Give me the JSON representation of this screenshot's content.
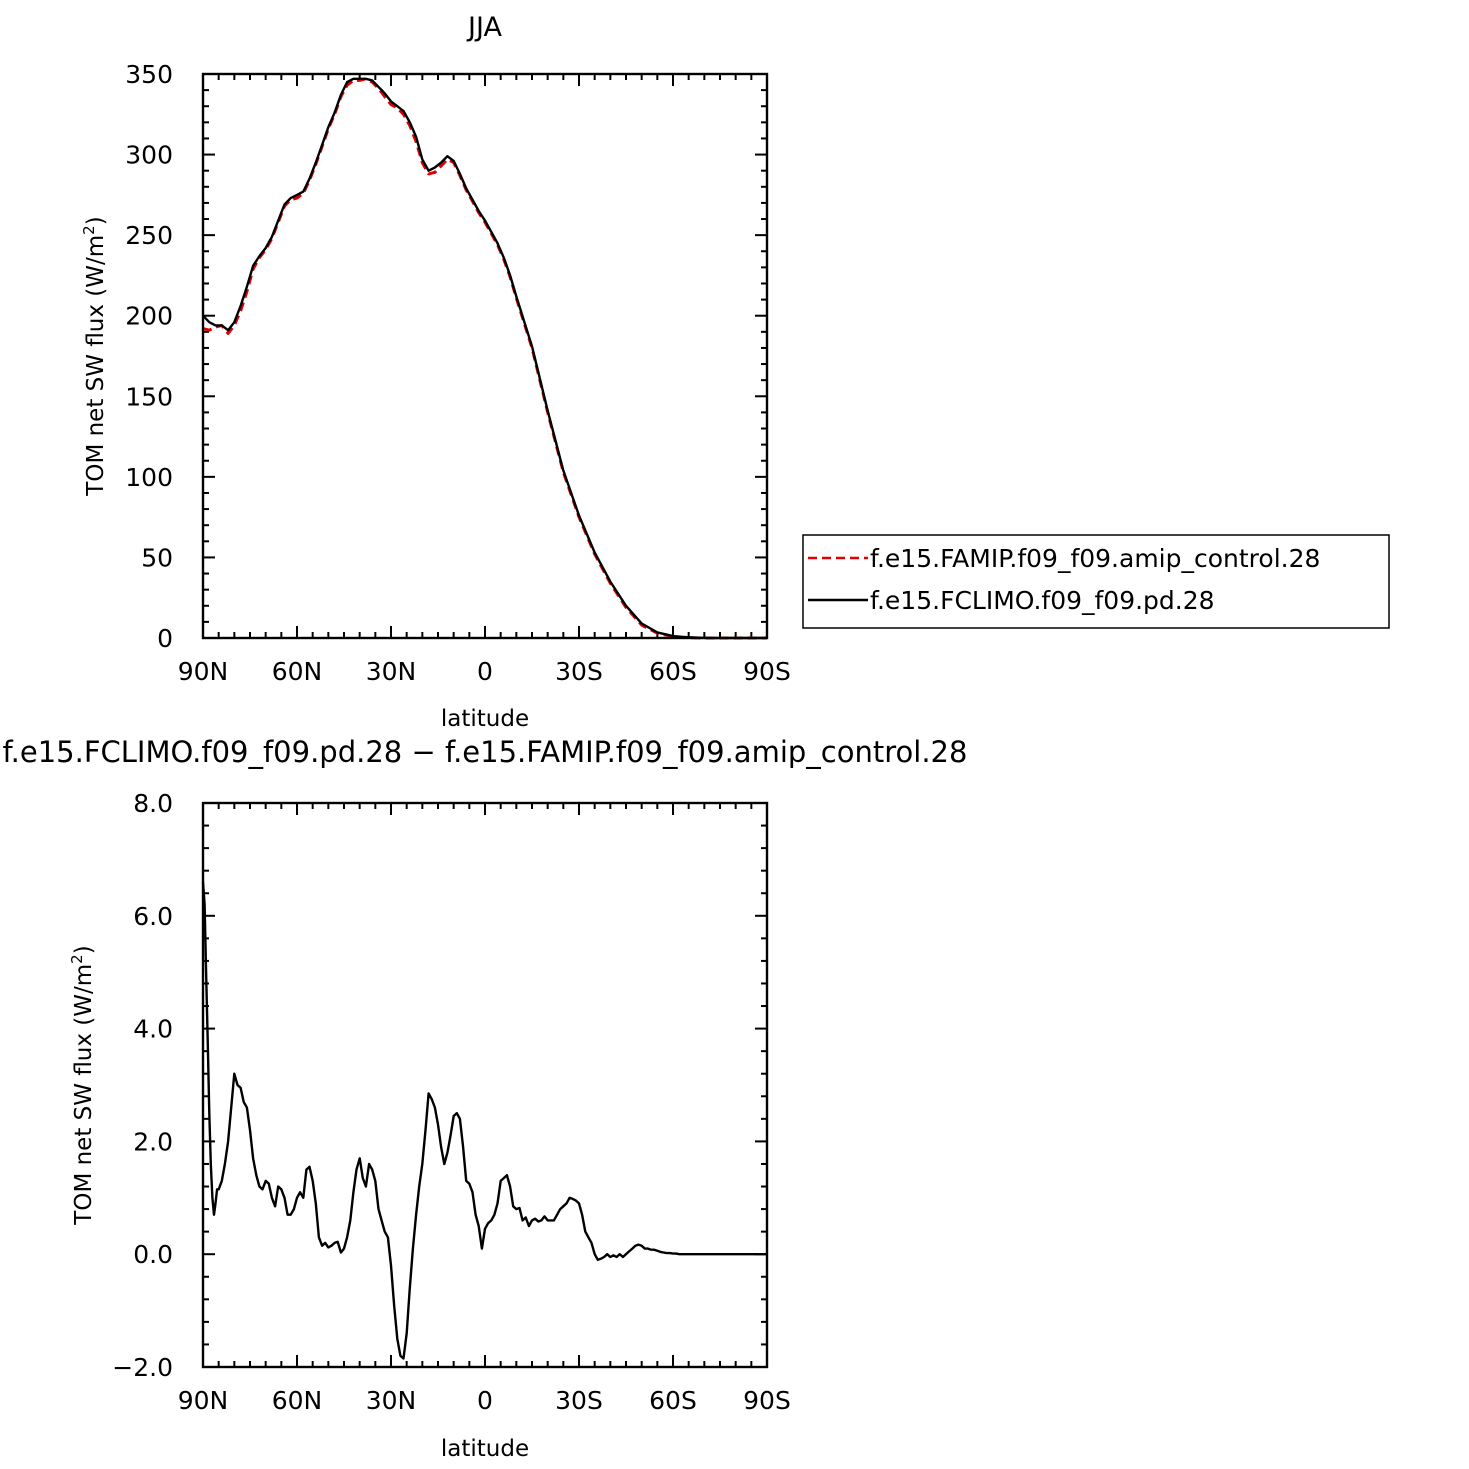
{
  "chart_data": [
    {
      "type": "line",
      "title": "JJA",
      "xlabel": "latitude",
      "ylabel": "TOM net SW flux (W/m",
      "ylabel_sup": "2",
      "ylabel_close": ")",
      "xlim": [
        90,
        -90
      ],
      "ylim": [
        0,
        350
      ],
      "xticks": [
        90,
        60,
        30,
        0,
        -30,
        -60,
        -90
      ],
      "xtick_labels": [
        "90N",
        "60N",
        "30N",
        "0",
        "30S",
        "60S",
        "90S"
      ],
      "yticks": [
        0,
        50,
        100,
        150,
        200,
        250,
        300,
        350
      ],
      "ytick_labels": [
        "0",
        "50",
        "100",
        "150",
        "200",
        "250",
        "300",
        "350"
      ],
      "legend": "right",
      "series": [
        {
          "name": "f.e15.FAMIP.f09_f09.amip_control.28",
          "color": "#e00000",
          "dash": "dashed",
          "x": [
            90,
            88,
            86,
            84,
            82,
            80,
            78,
            76,
            74,
            72,
            70,
            68,
            66,
            64,
            62,
            60,
            58,
            56,
            54,
            52,
            50,
            48,
            46,
            44,
            42,
            40,
            38,
            36,
            34,
            32,
            30,
            28,
            26,
            24,
            22,
            20,
            18,
            16,
            14,
            12,
            10,
            8,
            6,
            4,
            2,
            0,
            -2,
            -4,
            -6,
            -8,
            -10,
            -15,
            -20,
            -25,
            -30,
            -35,
            -40,
            -45,
            -50,
            -55,
            -60,
            -63,
            -66,
            -69,
            -72,
            -75,
            -80,
            -85,
            -90
          ],
          "y": [
            192,
            191,
            193,
            194,
            189,
            194,
            203,
            215,
            229,
            236,
            241,
            248,
            258,
            268,
            272,
            273,
            276,
            284,
            294,
            305,
            316,
            325,
            336,
            343,
            346,
            346,
            347,
            345,
            341,
            336,
            331,
            329,
            325,
            318,
            308,
            295,
            288,
            289,
            293,
            297,
            295,
            287,
            278,
            271,
            264,
            258,
            251,
            244,
            235,
            224,
            211,
            180,
            140,
            103,
            75,
            52,
            34,
            19,
            8,
            3,
            1,
            0.5,
            0.2,
            0,
            0,
            0,
            0,
            0,
            0
          ]
        },
        {
          "name": "f.e15.FCLIMO.f09_f09.pd.28",
          "color": "#000000",
          "dash": "solid",
          "x": [
            90,
            88,
            86,
            84,
            82,
            80,
            78,
            76,
            74,
            72,
            70,
            68,
            66,
            64,
            62,
            60,
            58,
            56,
            54,
            52,
            50,
            48,
            46,
            44,
            42,
            40,
            38,
            36,
            34,
            32,
            30,
            28,
            26,
            24,
            22,
            20,
            18,
            16,
            14,
            12,
            10,
            8,
            6,
            4,
            2,
            0,
            -2,
            -4,
            -6,
            -8,
            -10,
            -15,
            -20,
            -25,
            -30,
            -35,
            -40,
            -45,
            -50,
            -55,
            -60,
            -63,
            -66,
            -69,
            -72,
            -75,
            -80,
            -85,
            -90
          ],
          "y": [
            200,
            196,
            194,
            194,
            191,
            196,
            206,
            218,
            231,
            237,
            242,
            249,
            259,
            269,
            273,
            275,
            277,
            285,
            295,
            306,
            317,
            326,
            337,
            345,
            347,
            347,
            347,
            346,
            342,
            338,
            333,
            330,
            327,
            320,
            311,
            297,
            290,
            292,
            295,
            299,
            296,
            288,
            279,
            272,
            265,
            259,
            252,
            245,
            236,
            225,
            212,
            181,
            141,
            104,
            76,
            53,
            35,
            20,
            9,
            3.5,
            1.2,
            0.6,
            0.3,
            0.1,
            0,
            0,
            0,
            0,
            0
          ]
        }
      ]
    },
    {
      "type": "line",
      "title": "f.e15.FCLIMO.f09_f09.pd.28 − f.e15.FAMIP.f09_f09.amip_control.28",
      "xlabel": "latitude",
      "ylabel": "TOM net SW flux (W/m",
      "ylabel_sup": "2",
      "ylabel_close": ")",
      "xlim": [
        90,
        -90
      ],
      "ylim": [
        -2,
        8
      ],
      "xticks": [
        90,
        60,
        30,
        0,
        -30,
        -60,
        -90
      ],
      "xtick_labels": [
        "90N",
        "60N",
        "30N",
        "0",
        "30S",
        "60S",
        "90S"
      ],
      "yticks": [
        -2,
        0,
        2,
        4,
        6,
        8
      ],
      "ytick_labels": [
        "−2.0",
        "0.0",
        "2.0",
        "4.0",
        "6.0",
        "8.0"
      ],
      "series": [
        {
          "color": "#000000",
          "dash": "solid",
          "x": [
            90,
            89.5,
            89,
            88.5,
            88,
            87.5,
            87,
            86.5,
            86,
            85.5,
            85,
            84,
            83,
            82,
            81,
            80,
            79,
            78,
            77,
            76,
            75,
            74,
            73,
            72,
            71,
            70,
            69,
            68,
            67,
            66,
            65,
            64,
            63,
            62,
            61,
            60,
            59,
            58,
            57,
            56,
            55,
            54,
            53,
            52,
            51,
            50,
            49,
            48,
            47,
            46,
            45,
            44,
            43,
            42,
            41,
            40,
            39,
            38,
            37,
            36,
            35,
            34,
            33,
            32,
            31,
            30,
            29,
            28,
            27,
            26,
            25,
            24,
            23,
            22,
            21,
            20,
            19,
            18,
            17,
            16,
            15,
            14,
            13,
            12,
            11,
            10,
            9,
            8,
            7,
            6,
            5,
            4,
            3,
            2,
            1,
            0,
            -1,
            -2,
            -3,
            -4,
            -5,
            -6,
            -7,
            -8,
            -9,
            -10,
            -11,
            -12,
            -13,
            -14,
            -15,
            -16,
            -17,
            -18,
            -19,
            -20,
            -21,
            -22,
            -23,
            -24,
            -25,
            -26,
            -27,
            -28,
            -29,
            -30,
            -31,
            -32,
            -33,
            -34,
            -35,
            -36,
            -37,
            -38,
            -39,
            -40,
            -41,
            -42,
            -43,
            -44,
            -45,
            -46,
            -47,
            -48,
            -49,
            -50,
            -51,
            -52,
            -53,
            -54,
            -55,
            -56,
            -57,
            -58,
            -59,
            -60,
            -61,
            -62,
            -63,
            -64,
            -65,
            -66,
            -67,
            -68,
            -69,
            -70,
            -72,
            -74,
            -76,
            -78,
            -80,
            -85,
            -90
          ],
          "y": [
            6.6,
            6.2,
            5.0,
            3.8,
            2.5,
            1.6,
            1.0,
            0.7,
            0.9,
            1.15,
            1.15,
            1.3,
            1.6,
            2.0,
            2.6,
            3.2,
            3.0,
            2.95,
            2.7,
            2.6,
            2.2,
            1.7,
            1.4,
            1.2,
            1.15,
            1.3,
            1.25,
            1.0,
            0.85,
            1.2,
            1.15,
            1.0,
            0.7,
            0.7,
            0.8,
            1.0,
            1.1,
            1.0,
            1.5,
            1.55,
            1.3,
            0.9,
            0.3,
            0.15,
            0.2,
            0.12,
            0.15,
            0.2,
            0.22,
            0.03,
            0.1,
            0.3,
            0.6,
            1.1,
            1.5,
            1.7,
            1.35,
            1.2,
            1.6,
            1.5,
            1.3,
            0.8,
            0.6,
            0.4,
            0.3,
            -0.2,
            -0.9,
            -1.5,
            -1.8,
            -1.85,
            -1.4,
            -0.6,
            0.1,
            0.7,
            1.2,
            1.6,
            2.2,
            2.85,
            2.75,
            2.6,
            2.3,
            1.9,
            1.6,
            1.8,
            2.1,
            2.45,
            2.5,
            2.4,
            1.9,
            1.3,
            1.25,
            1.1,
            0.7,
            0.5,
            0.1,
            0.45,
            0.55,
            0.6,
            0.7,
            0.9,
            1.3,
            1.35,
            1.4,
            1.2,
            0.85,
            0.8,
            0.82,
            0.6,
            0.65,
            0.5,
            0.6,
            0.63,
            0.58,
            0.6,
            0.67,
            0.6,
            0.6,
            0.6,
            0.7,
            0.8,
            0.85,
            0.9,
            1.0,
            0.98,
            0.95,
            0.9,
            0.7,
            0.4,
            0.3,
            0.2,
            0.0,
            -0.1,
            -0.08,
            -0.05,
            0.0,
            -0.05,
            -0.02,
            -0.05,
            0.0,
            -0.05,
            0.0,
            0.05,
            0.1,
            0.15,
            0.17,
            0.15,
            0.1,
            0.1,
            0.08,
            0.08,
            0.06,
            0.04,
            0.03,
            0.02,
            0.02,
            0.01,
            0.01,
            0.0,
            0.0,
            0.0,
            0.0,
            0.0,
            0.0,
            0.0,
            0.0,
            0.0,
            0.0,
            0.0,
            0.0,
            0.0,
            0.0,
            0.0,
            0.0
          ]
        }
      ]
    }
  ]
}
